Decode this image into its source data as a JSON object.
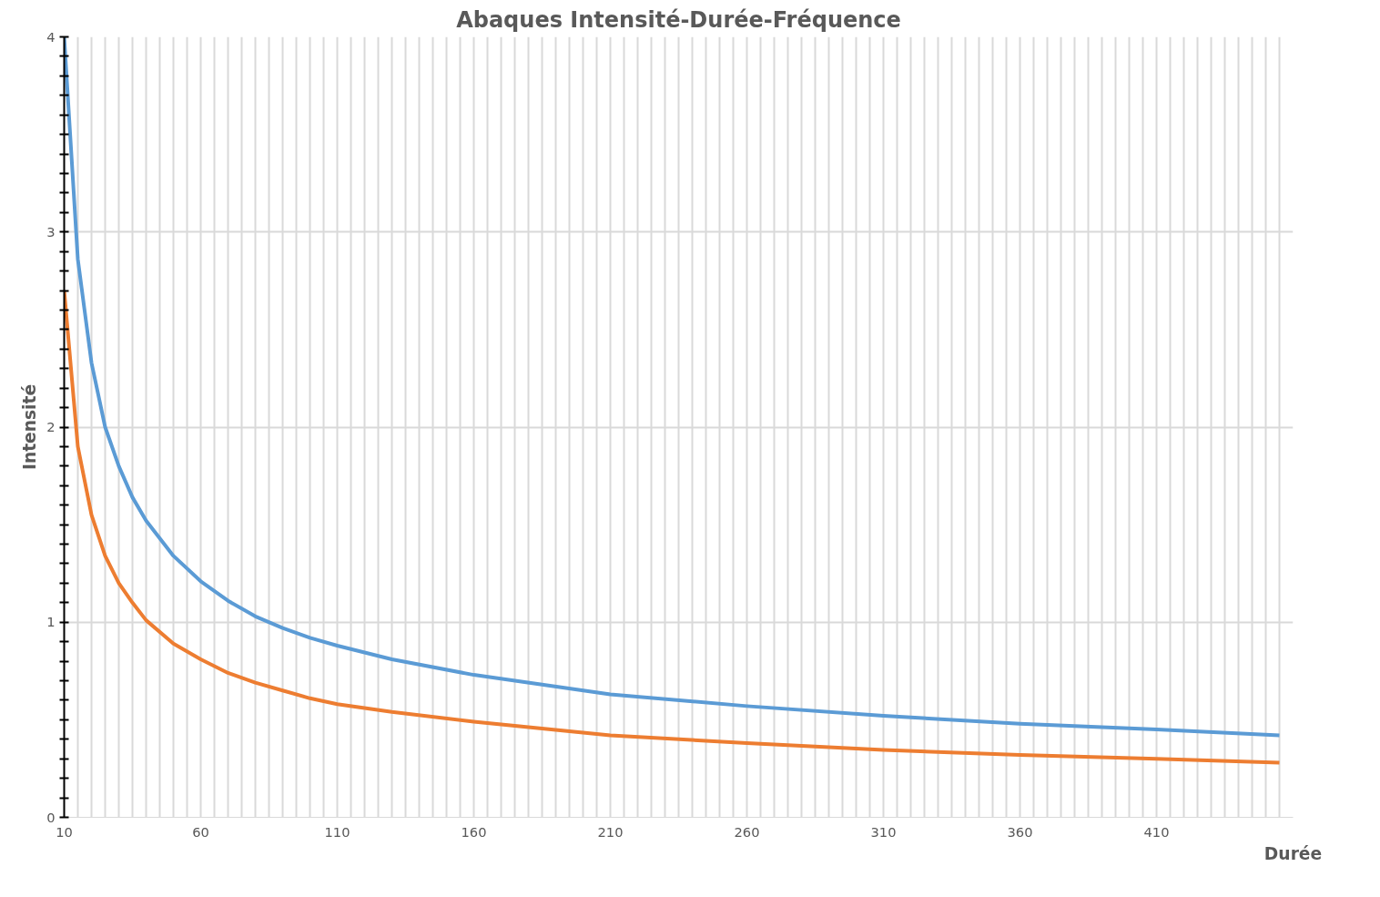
{
  "chart_data": {
    "type": "line",
    "title": "Abaques Intensité-Durée-Fréquence",
    "xlabel": "Durée",
    "ylabel": "Intensité",
    "xlim": [
      10,
      460
    ],
    "ylim": [
      0,
      4
    ],
    "xticks": [
      10,
      {
        "value": 15,
        "label": null
      },
      {
        "value": 20,
        "label": null
      },
      {
        "value": 25,
        "label": null
      },
      {
        "value": 30,
        "label": null
      },
      {
        "value": 35,
        "label": null
      },
      {
        "value": 40,
        "label": null
      },
      {
        "value": 45,
        "label": null
      },
      {
        "value": 50,
        "label": null
      },
      {
        "value": 55,
        "label": null
      },
      60,
      {
        "value": 65,
        "label": null
      },
      {
        "value": 70,
        "label": null
      },
      {
        "value": 75,
        "label": null
      },
      {
        "value": 80,
        "label": null
      },
      {
        "value": 85,
        "label": null
      },
      {
        "value": 90,
        "label": null
      },
      {
        "value": 95,
        "label": null
      },
      {
        "value": 100,
        "label": null
      },
      {
        "value": 105,
        "label": null
      },
      110,
      {
        "value": 115,
        "label": null
      },
      {
        "value": 120,
        "label": null
      },
      {
        "value": 125,
        "label": null
      },
      {
        "value": 130,
        "label": null
      },
      {
        "value": 135,
        "label": null
      },
      {
        "value": 140,
        "label": null
      },
      {
        "value": 145,
        "label": null
      },
      {
        "value": 150,
        "label": null
      },
      {
        "value": 155,
        "label": null
      },
      160,
      {
        "value": 165,
        "label": null
      },
      {
        "value": 170,
        "label": null
      },
      {
        "value": 175,
        "label": null
      },
      {
        "value": 180,
        "label": null
      },
      {
        "value": 185,
        "label": null
      },
      {
        "value": 190,
        "label": null
      },
      {
        "value": 195,
        "label": null
      },
      {
        "value": 200,
        "label": null
      },
      {
        "value": 205,
        "label": null
      },
      210,
      {
        "value": 215,
        "label": null
      },
      {
        "value": 220,
        "label": null
      },
      {
        "value": 225,
        "label": null
      },
      {
        "value": 230,
        "label": null
      },
      {
        "value": 235,
        "label": null
      },
      {
        "value": 240,
        "label": null
      },
      {
        "value": 245,
        "label": null
      },
      {
        "value": 250,
        "label": null
      },
      {
        "value": 255,
        "label": null
      },
      260,
      {
        "value": 265,
        "label": null
      },
      {
        "value": 270,
        "label": null
      },
      {
        "value": 275,
        "label": null
      },
      {
        "value": 280,
        "label": null
      },
      {
        "value": 285,
        "label": null
      },
      {
        "value": 290,
        "label": null
      },
      {
        "value": 295,
        "label": null
      },
      {
        "value": 300,
        "label": null
      },
      {
        "value": 305,
        "label": null
      },
      310,
      {
        "value": 315,
        "label": null
      },
      {
        "value": 320,
        "label": null
      },
      {
        "value": 325,
        "label": null
      },
      {
        "value": 330,
        "label": null
      },
      {
        "value": 335,
        "label": null
      },
      {
        "value": 340,
        "label": null
      },
      {
        "value": 345,
        "label": null
      },
      {
        "value": 350,
        "label": null
      },
      {
        "value": 355,
        "label": null
      },
      360,
      {
        "value": 365,
        "label": null
      },
      {
        "value": 370,
        "label": null
      },
      {
        "value": 375,
        "label": null
      },
      {
        "value": 380,
        "label": null
      },
      {
        "value": 385,
        "label": null
      },
      {
        "value": 390,
        "label": null
      },
      {
        "value": 395,
        "label": null
      },
      {
        "value": 400,
        "label": null
      },
      {
        "value": 405,
        "label": null
      },
      410,
      {
        "value": 415,
        "label": null
      },
      {
        "value": 420,
        "label": null
      },
      {
        "value": 425,
        "label": null
      },
      {
        "value": 430,
        "label": null
      },
      {
        "value": 435,
        "label": null
      },
      {
        "value": 440,
        "label": null
      },
      {
        "value": 445,
        "label": null
      },
      {
        "value": 450,
        "label": null
      },
      {
        "value": 455,
        "label": null
      }
    ],
    "yticks": [
      0,
      {
        "value": 0.1,
        "label": null
      },
      {
        "value": 0.2,
        "label": null
      },
      {
        "value": 0.3,
        "label": null
      },
      {
        "value": 0.4,
        "label": null
      },
      {
        "value": 0.5,
        "label": null
      },
      {
        "value": 0.6,
        "label": null
      },
      {
        "value": 0.7,
        "label": null
      },
      {
        "value": 0.8,
        "label": null
      },
      {
        "value": 0.9,
        "label": null
      },
      1,
      {
        "value": 1.1,
        "label": null
      },
      {
        "value": 1.2,
        "label": null
      },
      {
        "value": 1.3,
        "label": null
      },
      {
        "value": 1.4,
        "label": null
      },
      {
        "value": 1.5,
        "label": null
      },
      {
        "value": 1.6,
        "label": null
      },
      {
        "value": 1.7,
        "label": null
      },
      {
        "value": 1.8,
        "label": null
      },
      {
        "value": 1.9,
        "label": null
      },
      2,
      {
        "value": 2.1,
        "label": null
      },
      {
        "value": 2.2,
        "label": null
      },
      {
        "value": 2.3,
        "label": null
      },
      {
        "value": 2.4,
        "label": null
      },
      {
        "value": 2.5,
        "label": null
      },
      {
        "value": 2.6,
        "label": null
      },
      {
        "value": 2.7,
        "label": null
      },
      {
        "value": 2.8,
        "label": null
      },
      {
        "value": 2.9,
        "label": null
      },
      3,
      {
        "value": 3.1,
        "label": null
      },
      {
        "value": 3.2,
        "label": null
      },
      {
        "value": 3.3,
        "label": null
      },
      {
        "value": 3.4,
        "label": null
      },
      {
        "value": 3.5,
        "label": null
      },
      {
        "value": 3.6,
        "label": null
      },
      {
        "value": 3.7,
        "label": null
      },
      {
        "value": 3.8,
        "label": null
      },
      {
        "value": 3.9,
        "label": null
      },
      4
    ],
    "grid": true,
    "marker": "none",
    "line_style": "solid",
    "x": [
      10,
      15,
      20,
      25,
      30,
      35,
      40,
      50,
      60,
      70,
      80,
      90,
      100,
      110,
      130,
      160,
      210,
      260,
      310,
      360,
      410,
      455
    ],
    "series": [
      {
        "color": "#5b9bd5",
        "values": [
          4.0,
          2.86,
          2.33,
          2.0,
          1.8,
          1.64,
          1.52,
          1.34,
          1.21,
          1.11,
          1.03,
          0.97,
          0.92,
          0.88,
          0.81,
          0.73,
          0.63,
          0.57,
          0.52,
          0.48,
          0.45,
          0.42
        ]
      },
      {
        "color": "#ed7d31",
        "values": [
          2.7,
          1.9,
          1.55,
          1.34,
          1.2,
          1.1,
          1.01,
          0.89,
          0.81,
          0.74,
          0.69,
          0.65,
          0.61,
          0.58,
          0.54,
          0.49,
          0.42,
          0.38,
          0.345,
          0.32,
          0.3,
          0.28
        ]
      }
    ]
  }
}
